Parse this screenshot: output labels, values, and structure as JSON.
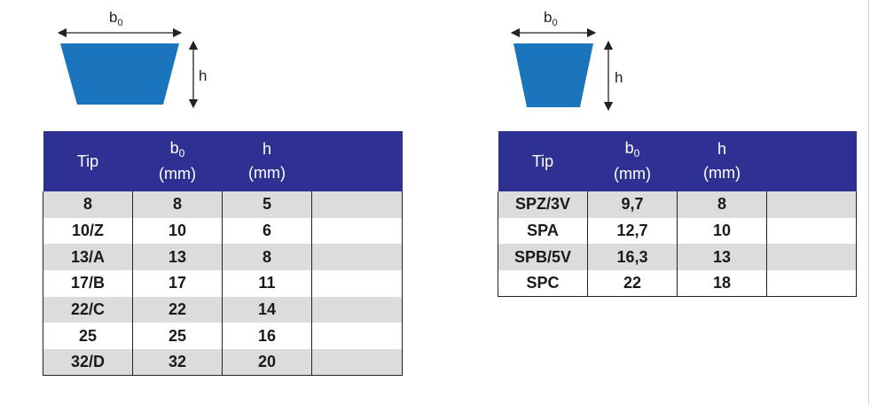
{
  "left": {
    "diagram": {
      "width_label": "b",
      "width_sub": "0",
      "height_label": "h"
    },
    "headers": [
      {
        "main": "Tip",
        "sub": "",
        "unit": ""
      },
      {
        "main": "b",
        "sub": "0",
        "unit": "(mm)"
      },
      {
        "main": "h",
        "sub": "",
        "unit": "(mm)"
      },
      {
        "main": "",
        "sub": "",
        "unit": ""
      }
    ],
    "rows": [
      [
        "8",
        "8",
        "5",
        ""
      ],
      [
        "10/Z",
        "10",
        "6",
        ""
      ],
      [
        "13/A",
        "13",
        "8",
        ""
      ],
      [
        "17/B",
        "17",
        "11",
        ""
      ],
      [
        "22/C",
        "22",
        "14",
        ""
      ],
      [
        "25",
        "25",
        "16",
        ""
      ],
      [
        "32/D",
        "32",
        "20",
        ""
      ]
    ]
  },
  "right": {
    "diagram": {
      "width_label": "b",
      "width_sub": "0",
      "height_label": "h"
    },
    "headers": [
      {
        "main": "Tip",
        "sub": "",
        "unit": ""
      },
      {
        "main": "b",
        "sub": "0",
        "unit": "(mm)"
      },
      {
        "main": "h",
        "sub": "",
        "unit": "(mm)"
      },
      {
        "main": "",
        "sub": "",
        "unit": ""
      }
    ],
    "rows": [
      [
        "SPZ/3V",
        "9,7",
        "8",
        ""
      ],
      [
        "SPA",
        "12,7",
        "10",
        ""
      ],
      [
        "SPB/5V",
        "16,3",
        "13",
        ""
      ],
      [
        "SPC",
        "22",
        "18",
        ""
      ]
    ]
  },
  "colors": {
    "belt": "#1b75bc",
    "header": "#2e3192",
    "row_alt": "#dcdcdc"
  }
}
